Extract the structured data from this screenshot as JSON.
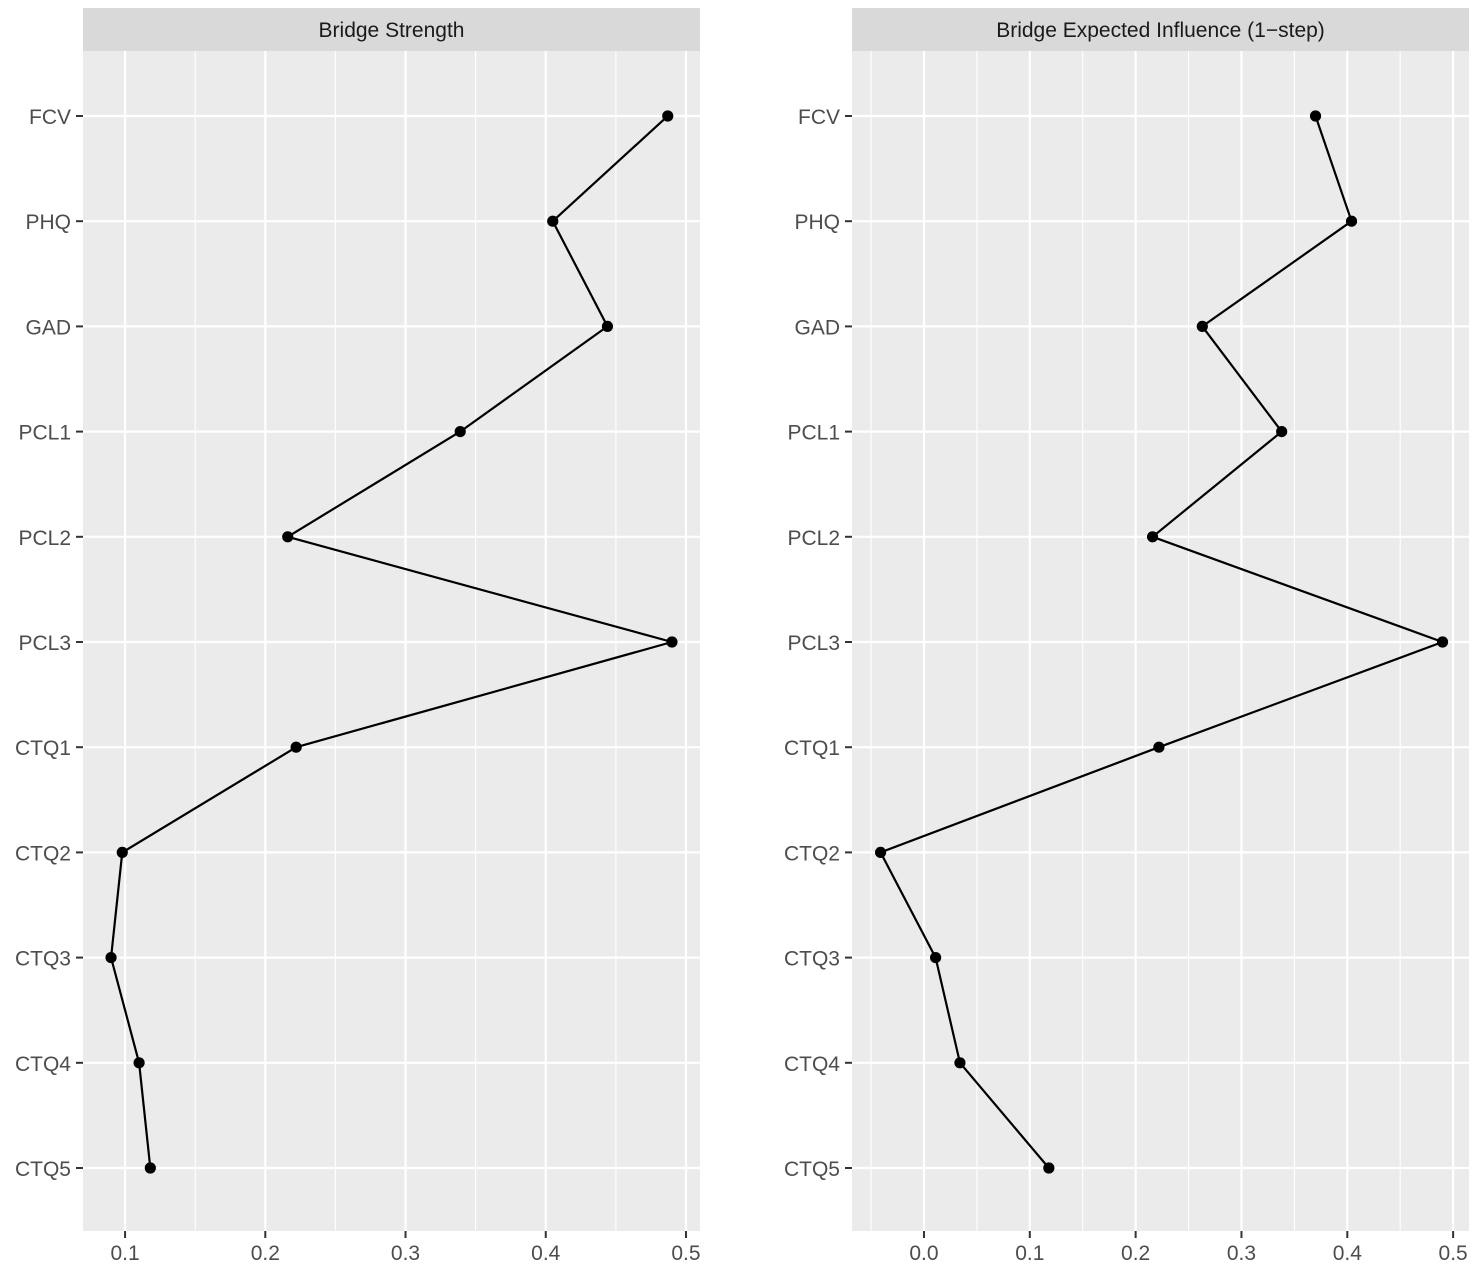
{
  "chart_data": [
    {
      "type": "line",
      "title": "Bridge Strength",
      "orientation": "horizontal-values-vertical-categories",
      "categories": [
        "FCV",
        "PHQ",
        "GAD",
        "PCL1",
        "PCL2",
        "PCL3",
        "CTQ1",
        "CTQ2",
        "CTQ3",
        "CTQ4",
        "CTQ5"
      ],
      "values": [
        0.487,
        0.405,
        0.444,
        0.339,
        0.216,
        0.49,
        0.222,
        0.098,
        0.09,
        0.11,
        0.118
      ],
      "xlim": [
        0.07,
        0.51
      ],
      "xticks": [
        0.1,
        0.2,
        0.3,
        0.4,
        0.5
      ],
      "xtick_labels": [
        "0.1",
        "0.2",
        "0.3",
        "0.4",
        "0.5"
      ],
      "grid": true,
      "xlabel": "",
      "ylabel": ""
    },
    {
      "type": "line",
      "title": "Bridge Expected Influence (1−step)",
      "orientation": "horizontal-values-vertical-categories",
      "categories": [
        "FCV",
        "PHQ",
        "GAD",
        "PCL1",
        "PCL2",
        "PCL3",
        "CTQ1",
        "CTQ2",
        "CTQ3",
        "CTQ4",
        "CTQ5"
      ],
      "values": [
        0.37,
        0.404,
        0.263,
        0.338,
        0.216,
        0.49,
        0.222,
        -0.041,
        0.011,
        0.034,
        0.118
      ],
      "xlim": [
        -0.068,
        0.515
      ],
      "xticks": [
        0.0,
        0.1,
        0.2,
        0.3,
        0.4,
        0.5
      ],
      "xtick_labels": [
        "0.0",
        "0.1",
        "0.2",
        "0.3",
        "0.4",
        "0.5"
      ],
      "grid": true,
      "xlabel": "",
      "ylabel": ""
    }
  ],
  "colors": {
    "panel_background": "#ebebeb",
    "strip_background": "#d9d9d9",
    "grid_line": "#ffffff",
    "series": "#000000",
    "tick_label": "#4d4d4d",
    "tick_mark": "#333333"
  }
}
